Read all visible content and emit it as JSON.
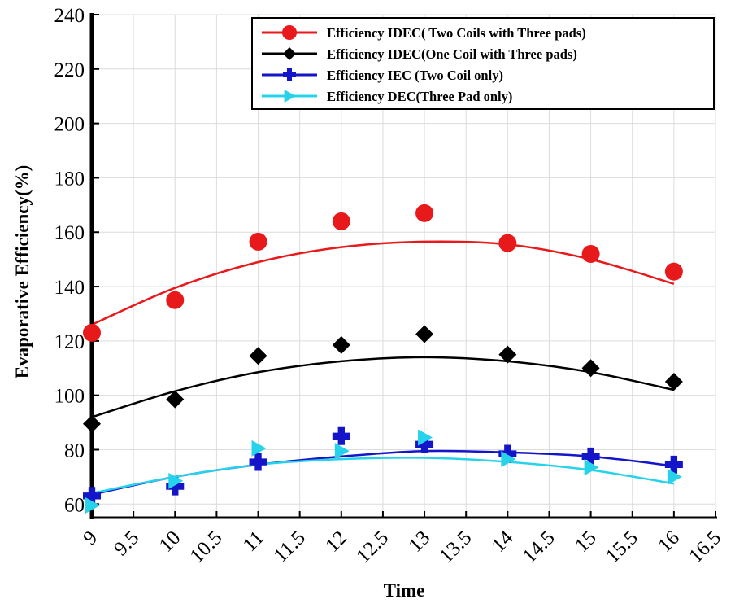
{
  "chart_data": {
    "type": "scatter",
    "xlabel": "Time",
    "ylabel": "Evaporative Efficiency(%)",
    "xlim": [
      9,
      16.5
    ],
    "ylim": [
      55,
      240
    ],
    "x_ticks": [
      9,
      9.5,
      10,
      10.5,
      11,
      11.5,
      12,
      12.5,
      13,
      13.5,
      14,
      14.5,
      15,
      15.5,
      16,
      16.5
    ],
    "y_ticks": [
      60,
      80,
      100,
      120,
      140,
      160,
      180,
      200,
      220,
      240
    ],
    "grid": true,
    "legend_position": "top-right",
    "series": [
      {
        "name": "Efficiency IDEC( Two Coils with Three pads)",
        "color": "#e8191b",
        "marker": "circle",
        "x": [
          9,
          10,
          11,
          12,
          13,
          14,
          15,
          16
        ],
        "y": [
          123,
          135,
          156.5,
          164,
          167,
          156,
          152,
          145.5
        ],
        "fit": [
          126,
          139.5,
          149,
          154.5,
          156.5,
          155.5,
          150,
          141
        ]
      },
      {
        "name": "Efficiency IDEC(One Coil with Three pads)",
        "color": "#000000",
        "marker": "diamond",
        "x": [
          9,
          10,
          11,
          12,
          13,
          14,
          15,
          16
        ],
        "y": [
          89.5,
          98.5,
          114.5,
          118.5,
          122.5,
          115,
          110,
          105
        ],
        "fit": [
          92,
          101.5,
          108.5,
          112.5,
          114,
          112.5,
          108.5,
          102
        ]
      },
      {
        "name": "Efficiency IEC (Two Coil only)",
        "color": "#1414c8",
        "marker": "plus",
        "x": [
          9,
          10,
          11,
          12,
          13,
          14,
          15,
          16
        ],
        "y": [
          63,
          66.5,
          75.5,
          85,
          82,
          78.5,
          77.5,
          74.5
        ],
        "fit": [
          63.5,
          70,
          74.5,
          77.5,
          79.5,
          79,
          77.5,
          74
        ]
      },
      {
        "name": "Efficiency DEC(Three Pad only)",
        "color": "#27d3ea",
        "marker": "triangle-right",
        "x": [
          9,
          10,
          11,
          12,
          13,
          14,
          15,
          16
        ],
        "y": [
          59.5,
          68.5,
          80.5,
          79.5,
          84.5,
          76.5,
          73.5,
          70
        ],
        "fit": [
          64,
          70,
          74.5,
          76.5,
          77,
          75.5,
          72.5,
          67.5
        ]
      }
    ]
  }
}
